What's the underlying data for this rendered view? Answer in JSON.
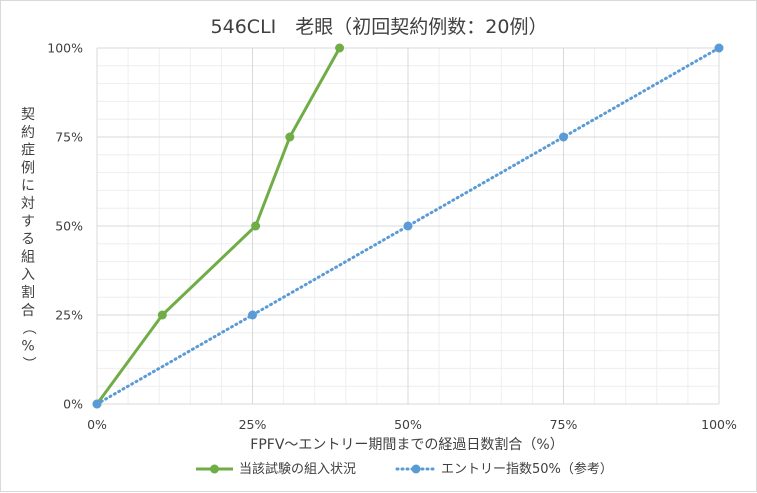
{
  "chart_data": {
    "type": "line",
    "title": "546CLI　老眼（初回契約例数：20例）",
    "xlabel": "FPFV～エントリー期間までの経過日数割合（%）",
    "ylabel": "契約症例に対する組入割合（%）",
    "xlim": [
      0,
      100
    ],
    "ylim": [
      0,
      100
    ],
    "x_ticks": [
      "0%",
      "25%",
      "50%",
      "75%",
      "100%"
    ],
    "y_ticks": [
      "0%",
      "25%",
      "50%",
      "75%",
      "100%"
    ],
    "grid": true,
    "legend_position": "bottom",
    "series": [
      {
        "name": "当該試験の組入状況",
        "color": "#70ad47",
        "style": "solid",
        "points": [
          [
            0,
            0
          ],
          [
            10.5,
            25
          ],
          [
            25.5,
            50
          ],
          [
            31,
            75
          ],
          [
            39,
            100
          ]
        ]
      },
      {
        "name": "エントリー指数50%（参考）",
        "color": "#5b9bd5",
        "style": "dotted",
        "points": [
          [
            0,
            0
          ],
          [
            25,
            25
          ],
          [
            50,
            50
          ],
          [
            75,
            75
          ],
          [
            100,
            100
          ]
        ]
      }
    ]
  }
}
